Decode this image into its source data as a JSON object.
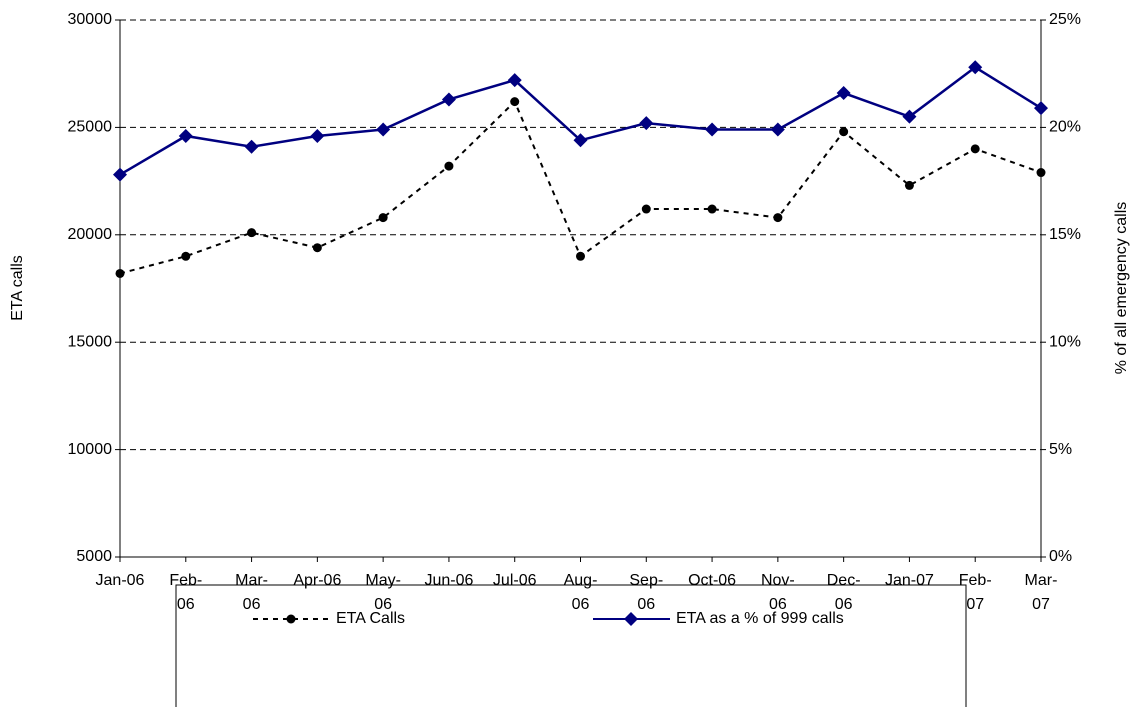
{
  "chart_data": {
    "type": "line",
    "categories": [
      "Jan-06",
      "Feb-06",
      "Mar-06",
      "Apr-06",
      "May-06",
      "Jun-06",
      "Jul-06",
      "Aug-06",
      "Sep-06",
      "Oct-06",
      "Nov-06",
      "Dec-06",
      "Jan-07",
      "Feb-07",
      "Mar-07"
    ],
    "series": [
      {
        "name": "ETA Calls",
        "color": "#000000",
        "values": [
          18200,
          19000,
          20100,
          19400,
          20800,
          23200,
          26200,
          19000,
          21200,
          21200,
          20800,
          24800,
          22300,
          24000,
          22900
        ]
      },
      {
        "name": "ETA as a % of 999 calls",
        "color": "#000080",
        "axis": "y2",
        "values": [
          17.8,
          19.6,
          19.1,
          19.6,
          19.9,
          21.3,
          22.2,
          19.4,
          20.2,
          19.9,
          19.9,
          21.6,
          20.5,
          22.8,
          20.9
        ]
      }
    ],
    "ylabel": "ETA calls",
    "y2label": "% of all emergency calls",
    "ylim": [
      5000,
      30000
    ],
    "yticks": [
      5000,
      10000,
      15000,
      20000,
      25000,
      30000
    ],
    "y2lim": [
      0,
      25
    ],
    "y2ticks": [
      {
        "value": 0,
        "label": "0%"
      },
      {
        "value": 5,
        "label": "5%"
      },
      {
        "value": 10,
        "label": "10%"
      },
      {
        "value": 15,
        "label": "15%"
      },
      {
        "value": 20,
        "label": "20%"
      },
      {
        "value": 25,
        "label": "25%"
      }
    ],
    "grid": true
  }
}
